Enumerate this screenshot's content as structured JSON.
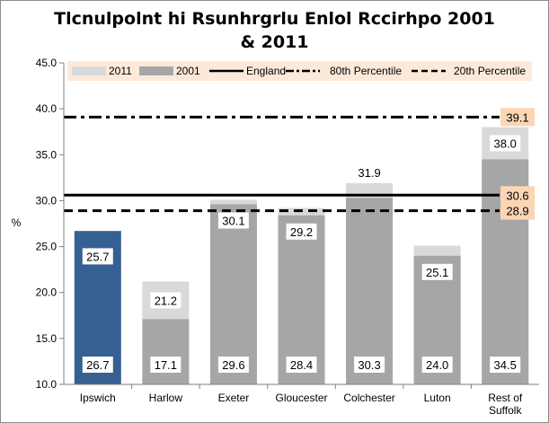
{
  "chart_data": {
    "type": "bar",
    "title": "Tlcnulpolnt hi Rsunhrgrlu Enlol Rccirhpo  2001\n& 2011",
    "xlabel": "",
    "ylabel": "%",
    "ylim": [
      10,
      45
    ],
    "yticks": [
      "10.0",
      "15.0",
      "20.0",
      "25.0",
      "30.0",
      "35.0",
      "40.0",
      "45.0"
    ],
    "categories": [
      "Ipswich",
      "Harlow",
      "Exeter",
      "Gloucester",
      "Colchester",
      "Luton",
      "Rest of\nSuffolk"
    ],
    "series": [
      {
        "name": "2011",
        "values": [
          25.7,
          21.2,
          30.1,
          29.2,
          31.9,
          25.1,
          38.0
        ],
        "labels": [
          "25.7",
          "21.2",
          "30.1",
          "29.2",
          "31.9",
          "25.1",
          "38.0"
        ],
        "color": "#d9d9d9"
      },
      {
        "name": "2001",
        "values": [
          26.7,
          17.1,
          29.6,
          28.4,
          30.3,
          24.0,
          34.5
        ],
        "labels": [
          "26.7",
          "17.1",
          "29.6",
          "28.4",
          "30.3",
          "24.0",
          "34.5"
        ],
        "color": "#a6a6a6"
      }
    ],
    "highlight": {
      "category": "Ipswich",
      "color": "#366092"
    },
    "reference_lines": [
      {
        "name": "England",
        "value": 30.6,
        "label": "30.6",
        "style": "solid"
      },
      {
        "name": "80th Percentile",
        "value": 39.1,
        "label": "39.1",
        "style": "dash-dot"
      },
      {
        "name": "20th Percentile",
        "value": 28.9,
        "label": "28.9",
        "style": "dashed"
      }
    ],
    "legend_position": "top",
    "grid": false,
    "colors": {
      "bar_2011": "#d9d9d9",
      "bar_2001": "#a6a6a6",
      "ipswich": "#366092",
      "legend_bg": "#fde9d9",
      "ref_label_bg": "#fcd5b4",
      "line": "#000000"
    }
  }
}
